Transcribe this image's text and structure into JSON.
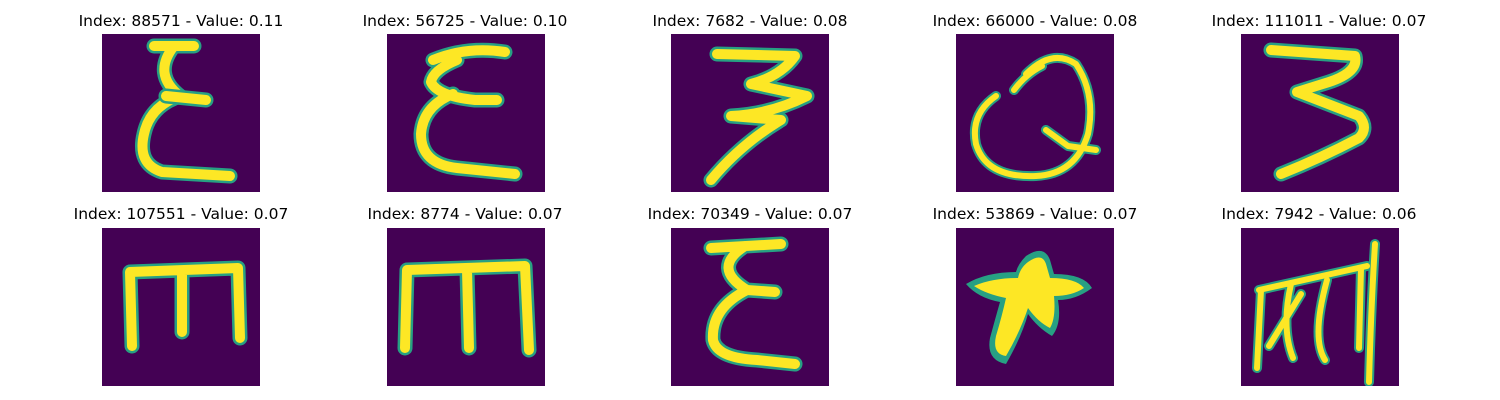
{
  "colors": {
    "background": "#440154",
    "foreground": "#fde725",
    "edge": "#27a083"
  },
  "panels": [
    {
      "title": "Index: 88571 - Value: 0.11",
      "glyph": "epsilon-like"
    },
    {
      "title": "Index: 56725 - Value: 0.10",
      "glyph": "epsilon-like"
    },
    {
      "title": "Index: 7682 - Value: 0.08",
      "glyph": "three-like"
    },
    {
      "title": "Index: 66000 - Value: 0.08",
      "glyph": "q-like"
    },
    {
      "title": "Index: 111011 - Value: 0.07",
      "glyph": "three-like"
    },
    {
      "title": "Index: 107551 - Value: 0.07",
      "glyph": "rotated-e"
    },
    {
      "title": "Index: 8774 - Value: 0.07",
      "glyph": "rotated-e"
    },
    {
      "title": "Index: 70349 - Value: 0.07",
      "glyph": "epsilon-like"
    },
    {
      "title": "Index: 53869 - Value: 0.07",
      "glyph": "star-blob"
    },
    {
      "title": "Index: 7942 - Value: 0.06",
      "glyph": "scribble"
    }
  ]
}
